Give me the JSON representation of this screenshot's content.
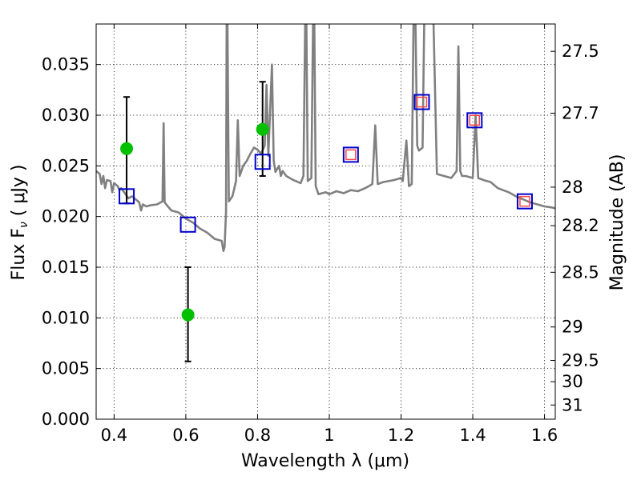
{
  "chart_data": {
    "type": "scatter",
    "xlabel": "Wavelength  λ (μm)",
    "ylabel": "Flux  F",
    "ylabel_sub": "ν",
    "ylabel_units": "  ( μJy )",
    "y2label": "Magnitude (AB)",
    "xlim": [
      0.35,
      1.63
    ],
    "ylim": [
      0.0,
      0.039
    ],
    "grid": true,
    "x_ticks": [
      0.4,
      0.6,
      0.8,
      1.0,
      1.2,
      1.4,
      1.6
    ],
    "x_tick_labels": [
      "0.4",
      "0.6",
      "0.8",
      "1",
      "1.2",
      "1.4",
      "1.6"
    ],
    "y_ticks": [
      0.0,
      0.005,
      0.01,
      0.015,
      0.02,
      0.025,
      0.03,
      0.035
    ],
    "y_tick_labels": [
      "0.000",
      "0.005",
      "0.010",
      "0.015",
      "0.020",
      "0.025",
      "0.030",
      "0.035"
    ],
    "y2_ticks": [
      {
        "label": "27.5",
        "flux": 0.0363
      },
      {
        "label": "27.7",
        "flux": 0.0302
      },
      {
        "label": "28",
        "flux": 0.0229
      },
      {
        "label": "28.2",
        "flux": 0.0191
      },
      {
        "label": "28.5",
        "flux": 0.0145
      },
      {
        "label": "29",
        "flux": 0.0091
      },
      {
        "label": "29.5",
        "flux": 0.0058
      },
      {
        "label": "30",
        "flux": 0.0037
      },
      {
        "label": "31",
        "flux": 0.0014
      }
    ],
    "series": [
      {
        "kind": "line",
        "color": "#808080",
        "points": [
          [
            0.35,
            0.0245
          ],
          [
            0.36,
            0.0242
          ],
          [
            0.365,
            0.0232
          ],
          [
            0.37,
            0.024
          ],
          [
            0.375,
            0.0228
          ],
          [
            0.38,
            0.0236
          ],
          [
            0.39,
            0.0235
          ],
          [
            0.395,
            0.0224
          ],
          [
            0.4,
            0.0233
          ],
          [
            0.41,
            0.023
          ],
          [
            0.415,
            0.0226
          ],
          [
            0.42,
            0.0228
          ],
          [
            0.43,
            0.0223
          ],
          [
            0.44,
            0.0218
          ],
          [
            0.45,
            0.022
          ],
          [
            0.46,
            0.0217
          ],
          [
            0.47,
            0.0214
          ],
          [
            0.475,
            0.0206
          ],
          [
            0.48,
            0.0212
          ],
          [
            0.49,
            0.021
          ],
          [
            0.5,
            0.0211
          ],
          [
            0.52,
            0.0212
          ],
          [
            0.535,
            0.0215
          ],
          [
            0.538,
            0.0292
          ],
          [
            0.541,
            0.0214
          ],
          [
            0.55,
            0.021
          ],
          [
            0.56,
            0.0206
          ],
          [
            0.58,
            0.0204
          ],
          [
            0.6,
            0.0198
          ],
          [
            0.62,
            0.0194
          ],
          [
            0.64,
            0.0188
          ],
          [
            0.66,
            0.0184
          ],
          [
            0.68,
            0.0178
          ],
          [
            0.7,
            0.0176
          ],
          [
            0.705,
            0.0166
          ],
          [
            0.708,
            0.017
          ],
          [
            0.712,
            0.0205
          ],
          [
            0.714,
            0.04
          ],
          [
            0.716,
            0.04
          ],
          [
            0.72,
            0.0215
          ],
          [
            0.73,
            0.022
          ],
          [
            0.74,
            0.0235
          ],
          [
            0.745,
            0.0295
          ],
          [
            0.75,
            0.024
          ],
          [
            0.76,
            0.025
          ],
          [
            0.77,
            0.0255
          ],
          [
            0.78,
            0.0262
          ],
          [
            0.79,
            0.0268
          ],
          [
            0.8,
            0.0266
          ],
          [
            0.81,
            0.0262
          ],
          [
            0.82,
            0.027
          ],
          [
            0.825,
            0.033
          ],
          [
            0.83,
            0.026
          ],
          [
            0.84,
            0.035
          ],
          [
            0.845,
            0.0255
          ],
          [
            0.85,
            0.0244
          ],
          [
            0.86,
            0.025
          ],
          [
            0.865,
            0.024
          ],
          [
            0.87,
            0.0245
          ],
          [
            0.88,
            0.024
          ],
          [
            0.9,
            0.0236
          ],
          [
            0.92,
            0.0233
          ],
          [
            0.928,
            0.024
          ],
          [
            0.933,
            0.04
          ],
          [
            0.936,
            0.04
          ],
          [
            0.94,
            0.0235
          ],
          [
            0.95,
            0.0238
          ],
          [
            0.955,
            0.04
          ],
          [
            0.958,
            0.04
          ],
          [
            0.962,
            0.023
          ],
          [
            0.97,
            0.0222
          ],
          [
            0.99,
            0.0224
          ],
          [
            1.0,
            0.0222
          ],
          [
            1.02,
            0.0225
          ],
          [
            1.04,
            0.0223
          ],
          [
            1.06,
            0.0226
          ],
          [
            1.08,
            0.0225
          ],
          [
            1.1,
            0.0228
          ],
          [
            1.12,
            0.0232
          ],
          [
            1.128,
            0.029
          ],
          [
            1.135,
            0.0232
          ],
          [
            1.15,
            0.0234
          ],
          [
            1.18,
            0.0236
          ],
          [
            1.2,
            0.0238
          ],
          [
            1.205,
            0.0235
          ],
          [
            1.215,
            0.0275
          ],
          [
            1.222,
            0.023
          ],
          [
            1.23,
            0.0232
          ],
          [
            1.235,
            0.04
          ],
          [
            1.24,
            0.04
          ],
          [
            1.245,
            0.027
          ],
          [
            1.25,
            0.0265
          ],
          [
            1.26,
            0.0268
          ],
          [
            1.265,
            0.04
          ],
          [
            1.28,
            0.04
          ],
          [
            1.29,
            0.04
          ],
          [
            1.3,
            0.0242
          ],
          [
            1.32,
            0.024
          ],
          [
            1.34,
            0.0238
          ],
          [
            1.355,
            0.0245
          ],
          [
            1.36,
            0.0368
          ],
          [
            1.365,
            0.0245
          ],
          [
            1.37,
            0.024
          ],
          [
            1.38,
            0.024
          ],
          [
            1.4,
            0.0238
          ],
          [
            1.408,
            0.03
          ],
          [
            1.415,
            0.0238
          ],
          [
            1.43,
            0.0236
          ],
          [
            1.45,
            0.0234
          ],
          [
            1.47,
            0.0228
          ],
          [
            1.5,
            0.0224
          ],
          [
            1.52,
            0.022
          ],
          [
            1.54,
            0.0217
          ],
          [
            1.56,
            0.0214
          ],
          [
            1.58,
            0.0212
          ],
          [
            1.6,
            0.021
          ],
          [
            1.62,
            0.0209
          ],
          [
            1.63,
            0.0208
          ]
        ]
      },
      {
        "kind": "errorbar",
        "color": "#00c000",
        "points": [
          {
            "x": 0.435,
            "y": 0.0267,
            "ylo": 0.0213,
            "yhi": 0.0318
          },
          {
            "x": 0.606,
            "y": 0.0103,
            "ylo": 0.0057,
            "yhi": 0.015
          },
          {
            "x": 0.814,
            "y": 0.0286,
            "ylo": 0.024,
            "yhi": 0.0333
          }
        ]
      },
      {
        "kind": "square",
        "color": "#0000cc",
        "points": [
          [
            0.435,
            0.022
          ],
          [
            0.606,
            0.0192
          ],
          [
            0.814,
            0.0254
          ],
          [
            1.06,
            0.0261
          ],
          [
            1.258,
            0.0313
          ],
          [
            1.405,
            0.0295
          ],
          [
            1.545,
            0.0215
          ]
        ]
      },
      {
        "kind": "inner-square",
        "color": "#ff4444",
        "points": [
          [
            1.06,
            0.0261
          ],
          [
            1.258,
            0.0313
          ],
          [
            1.405,
            0.0295
          ],
          [
            1.545,
            0.0215
          ]
        ]
      }
    ]
  }
}
